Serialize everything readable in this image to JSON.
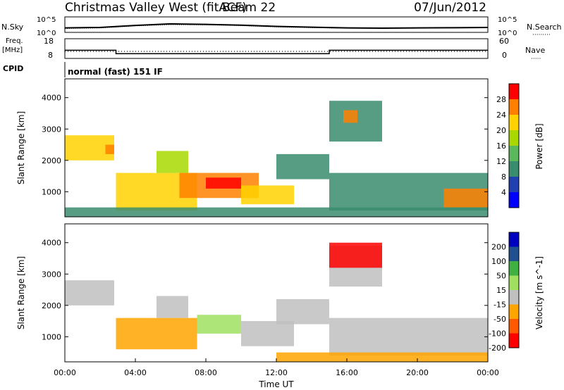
{
  "header": {
    "title": "Christmas Valley West (fitACF)",
    "beam": "Beam 22",
    "date": "07/Jun/2012"
  },
  "strip_labels": {
    "nsky": "N.Sky",
    "nsearch": "N.Search",
    "freq": "Freq.",
    "freq_unit": "[MHz]",
    "nave": "Nave",
    "cpid": "CPID",
    "cpid_value": "normal (fast) 151 IF"
  },
  "colors": {
    "frame": "#000000",
    "red": "#ff0000",
    "orange": "#ff8000",
    "yellow": "#ffd200",
    "light_green": "#a8d800",
    "green": "#2ca02c",
    "dark_blue": "#2040b0",
    "gray": "#c0c0c0"
  },
  "chart_data": [
    {
      "type": "line",
      "name": "noise-strip",
      "x_unit": "hours UT",
      "left_ticks": [
        "10^5",
        "10^0"
      ],
      "right_ticks": [
        "10^5",
        "10^0"
      ],
      "series": [
        {
          "name": "N.Sky",
          "x": [
            0,
            2,
            4,
            6,
            8,
            10,
            12,
            14,
            16,
            18,
            20,
            22,
            24
          ],
          "values": [
            1.2,
            1.4,
            2.2,
            2.8,
            2.6,
            2.3,
            1.8,
            1.5,
            1.2,
            1.1,
            1.2,
            1.3,
            1.4
          ]
        },
        {
          "name": "N.Search",
          "x": [
            0,
            2,
            4,
            6,
            8,
            10,
            12,
            14,
            16,
            18,
            20,
            22,
            24
          ],
          "values": [
            1.0,
            1.2,
            2.0,
            2.5,
            2.4,
            2.1,
            1.6,
            1.3,
            1.1,
            1.0,
            1.1,
            1.2,
            1.3
          ]
        }
      ]
    },
    {
      "type": "line",
      "name": "frequency-strip",
      "left_ticks": [
        "18",
        "8"
      ],
      "right_ticks": [
        "60",
        "0"
      ],
      "series": [
        {
          "name": "Freq.",
          "x": [
            0,
            2.9,
            2.9,
            15,
            15,
            24
          ],
          "values": [
            12,
            12,
            10,
            10,
            12,
            12
          ]
        },
        {
          "name": "Nave",
          "x": [
            0,
            24
          ],
          "values": [
            20,
            20
          ]
        }
      ]
    },
    {
      "type": "heatmap",
      "name": "power",
      "ylabel": "Slant Range [km]",
      "yticks": [
        1000,
        2000,
        3000,
        4000
      ],
      "ylim": [
        200,
        4600
      ],
      "xlim": [
        0,
        24
      ],
      "colorbar": {
        "label": "Power [dB]",
        "ticks": [
          "4",
          "8",
          "12",
          "16",
          "20",
          "24",
          "28"
        ],
        "range": [
          0,
          32
        ]
      },
      "regions": [
        {
          "x": [
            0,
            2.8
          ],
          "y": [
            2000,
            2800
          ],
          "value": 22
        },
        {
          "x": [
            2.3,
            2.8
          ],
          "y": [
            2200,
            2500
          ],
          "value": 26
        },
        {
          "x": [
            2.9,
            7.5
          ],
          "y": [
            400,
            1600
          ],
          "value": 22
        },
        {
          "x": [
            5.2,
            7.0
          ],
          "y": [
            1600,
            2300
          ],
          "value": 18
        },
        {
          "x": [
            6.5,
            11.0
          ],
          "y": [
            800,
            1600
          ],
          "value": 26
        },
        {
          "x": [
            8.0,
            10.0
          ],
          "y": [
            1100,
            1450
          ],
          "value": 28
        },
        {
          "x": [
            10.0,
            13.0
          ],
          "y": [
            600,
            1200
          ],
          "value": 20
        },
        {
          "x": [
            12.0,
            15.0
          ],
          "y": [
            1400,
            2200
          ],
          "value": 10
        },
        {
          "x": [
            15.0,
            18.0
          ],
          "y": [
            2600,
            3900
          ],
          "value": 10
        },
        {
          "x": [
            15.8,
            16.6
          ],
          "y": [
            3200,
            3600
          ],
          "value": 26
        },
        {
          "x": [
            15.0,
            24.0
          ],
          "y": [
            400,
            1600
          ],
          "value": 10
        },
        {
          "x": [
            21.5,
            24.0
          ],
          "y": [
            500,
            1100
          ],
          "value": 24
        },
        {
          "x": [
            0,
            24.0
          ],
          "y": [
            200,
            500
          ],
          "value": 8
        }
      ]
    },
    {
      "type": "heatmap",
      "name": "velocity",
      "xlabel": "Time UT",
      "ylabel": "Slant Range [km]",
      "xticks": [
        "00:00",
        "04:00",
        "08:00",
        "12:00",
        "16:00",
        "20:00",
        "00:00"
      ],
      "yticks": [
        1000,
        2000,
        3000,
        4000
      ],
      "ylim": [
        200,
        4600
      ],
      "xlim": [
        0,
        24
      ],
      "colorbar": {
        "label": "Velocity [m s^-1]",
        "ticks": [
          "200",
          "100",
          "50",
          "15",
          "-15",
          "-50",
          "-100",
          "-200"
        ],
        "range": [
          -250,
          250
        ]
      },
      "regions": [
        {
          "x": [
            0,
            2.8
          ],
          "y": [
            2000,
            2800
          ],
          "value": 0
        },
        {
          "x": [
            2.9,
            7.5
          ],
          "y": [
            600,
            1600
          ],
          "value": -60
        },
        {
          "x": [
            5.2,
            7.0
          ],
          "y": [
            1600,
            2300
          ],
          "value": 0
        },
        {
          "x": [
            7.5,
            10.0
          ],
          "y": [
            1100,
            1700
          ],
          "value": 30
        },
        {
          "x": [
            10.0,
            13.0
          ],
          "y": [
            700,
            1500
          ],
          "value": 0
        },
        {
          "x": [
            12.0,
            15.0
          ],
          "y": [
            1400,
            2200
          ],
          "value": 0
        },
        {
          "x": [
            15.0,
            18.0
          ],
          "y": [
            2600,
            3900
          ],
          "value": 0
        },
        {
          "x": [
            15.0,
            18.0
          ],
          "y": [
            3200,
            4000
          ],
          "value": -220
        },
        {
          "x": [
            15.0,
            24.0
          ],
          "y": [
            400,
            1600
          ],
          "value": 0
        },
        {
          "x": [
            12.0,
            24.0
          ],
          "y": [
            200,
            500
          ],
          "value": -70
        }
      ]
    }
  ]
}
